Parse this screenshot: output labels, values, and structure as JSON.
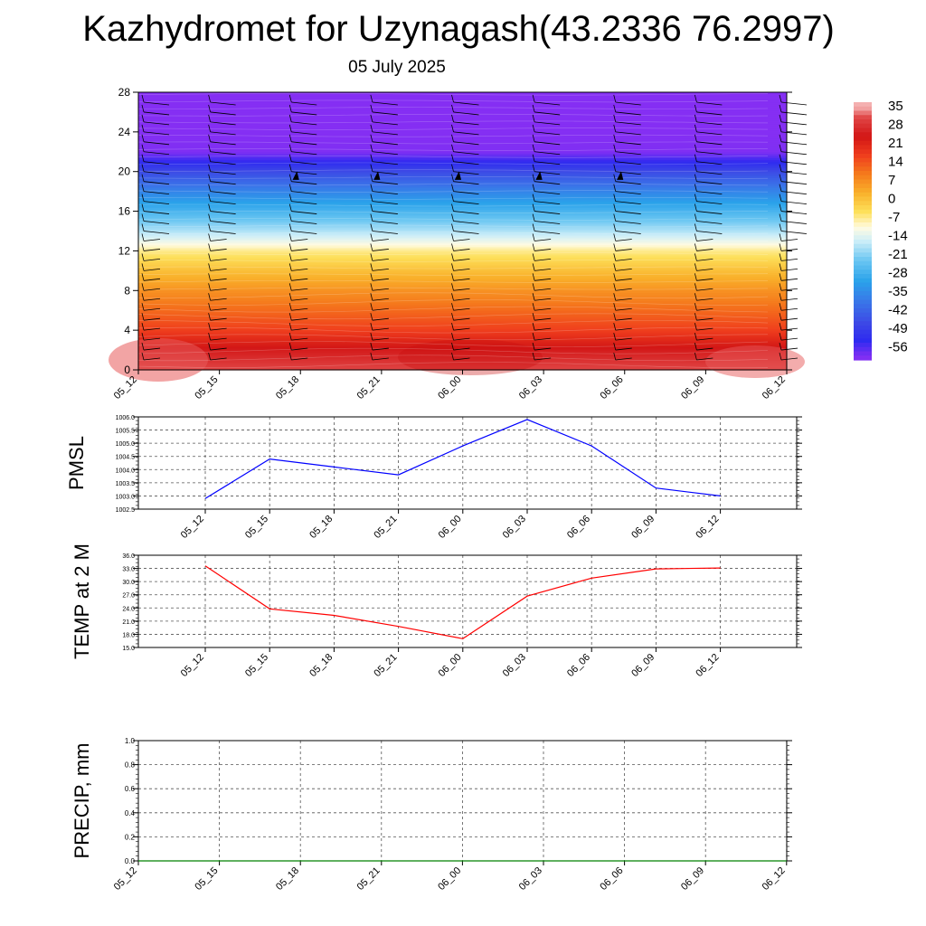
{
  "header": {
    "title": "Kazhydromet for Uzynagash(43.2336 76.2997)",
    "subtitle": "05 July 2025"
  },
  "chart_data": [
    {
      "type": "heatmap",
      "name": "vertical-temperature-section",
      "x_ticks": [
        "05_12",
        "05_15",
        "05_18",
        "05_21",
        "06_00",
        "06_03",
        "06_06",
        "06_09",
        "06_12"
      ],
      "y_ticks": [
        "0",
        "4",
        "8",
        "12",
        "16",
        "20",
        "24",
        "28"
      ],
      "ylim": [
        0,
        28
      ],
      "colorbar_labels": [
        "35",
        "28",
        "21",
        "14",
        "7",
        "0",
        "-7",
        "-14",
        "-21",
        "-28",
        "-35",
        "-42",
        "-49",
        "-56"
      ],
      "levels": [
        0,
        1,
        2,
        3,
        4,
        6,
        8,
        10,
        12,
        13,
        14,
        16,
        18,
        20,
        21,
        22,
        24,
        26,
        28
      ],
      "profile": [
        31,
        28,
        25,
        21,
        17,
        12,
        7,
        1,
        -6,
        -12,
        -17,
        -26,
        -35,
        -45,
        -52,
        -58,
        -60,
        -60,
        -60
      ],
      "colors": {
        "dark_red": "#cc1414",
        "red": "#e62222",
        "orange_red": "#f2561a",
        "orange": "#f7981e",
        "yellow": "#fce34a",
        "light_blue": "#c9ecf7",
        "sky_blue": "#33aaee",
        "blue": "#2f6fe6",
        "deep_blue": "#2d2ef0",
        "violet": "#8a2ff2",
        "pink": "#f08080"
      },
      "wind_barbs": "present"
    },
    {
      "type": "line",
      "name": "pmsl",
      "ylabel": "PMSL",
      "x_ticks": [
        "05_12",
        "05_15",
        "05_18",
        "05_21",
        "06_00",
        "06_03",
        "06_06",
        "06_09",
        "06_12"
      ],
      "y_ticks": [
        "1006.0",
        "1005.5",
        "1005.0",
        "1004.5",
        "1004.0",
        "1003.5",
        "1003.0",
        "1002.5"
      ],
      "ylim": [
        1002.5,
        1006.0
      ],
      "series": [
        {
          "values": [
            1002.9,
            1004.4,
            1004.1,
            1003.8,
            1004.9,
            1005.9,
            1004.9,
            1003.3,
            1003.0
          ]
        }
      ],
      "line_color": "#0000ff",
      "grid": true
    },
    {
      "type": "line",
      "name": "temp-2m",
      "ylabel": "TEMP at 2 M",
      "x_ticks": [
        "05_12",
        "05_15",
        "05_18",
        "05_21",
        "06_00",
        "06_03",
        "06_06",
        "06_09",
        "06_12"
      ],
      "y_ticks": [
        "36.0",
        "33.0",
        "30.0",
        "27.0",
        "24.0",
        "21.0",
        "18.0",
        "15.0"
      ],
      "ylim": [
        15.0,
        36.0
      ],
      "series": [
        {
          "values": [
            33.6,
            23.8,
            22.3,
            19.8,
            17.0,
            26.7,
            30.8,
            32.9,
            33.1
          ]
        }
      ],
      "line_color": "#ff0000",
      "grid": true
    },
    {
      "type": "line",
      "name": "precip",
      "ylabel": "PRECIP, mm",
      "x_ticks": [
        "05_12",
        "05_15",
        "05_18",
        "05_21",
        "06_00",
        "06_03",
        "06_06",
        "06_09",
        "06_12"
      ],
      "y_ticks": [
        "1.0",
        "0.8",
        "0.6",
        "0.4",
        "0.2",
        "0.0"
      ],
      "ylim": [
        0.0,
        1.0
      ],
      "series": [
        {
          "values": [
            0,
            0,
            0,
            0,
            0,
            0,
            0,
            0,
            0
          ]
        }
      ],
      "line_color": "#008000",
      "grid": true
    }
  ]
}
